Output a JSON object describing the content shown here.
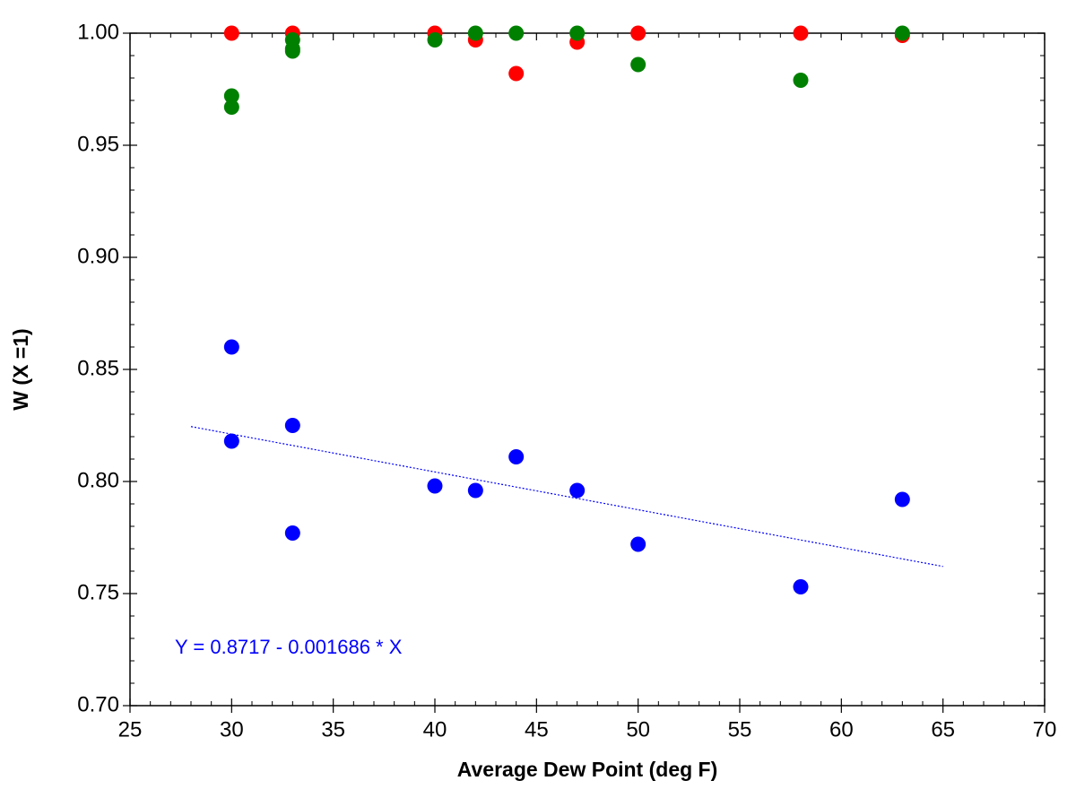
{
  "chart_data": {
    "type": "scatter",
    "xlabel": "Average Dew Point (deg F)",
    "ylabel": "W (X =1)",
    "annotation": "Y = 0.8717 - 0.001686 * X",
    "xlim": [
      25,
      70
    ],
    "xticks": [
      25,
      30,
      35,
      40,
      45,
      50,
      55,
      60,
      65,
      70
    ],
    "ylim": [
      0.7,
      1.0
    ],
    "yticks": [
      {
        "value": 0.7,
        "label": "0.70"
      },
      {
        "value": 0.75,
        "label": "0.75"
      },
      {
        "value": 0.8,
        "label": "0.80"
      },
      {
        "value": 0.85,
        "label": "0.85"
      },
      {
        "value": 0.9,
        "label": "0.90"
      },
      {
        "value": 0.95,
        "label": "0.95"
      },
      {
        "value": 1.0,
        "label": "1.00"
      }
    ],
    "grid": false,
    "series": [
      {
        "color": "#ff0000",
        "x": [
          30,
          33,
          40,
          42,
          44,
          47,
          50,
          58,
          63
        ],
        "values": [
          1.0,
          1.0,
          1.0,
          0.997,
          0.982,
          0.996,
          1.0,
          1.0,
          0.999
        ]
      },
      {
        "color": "#008000",
        "x": [
          30,
          30,
          33,
          33,
          33,
          40,
          42,
          44,
          47,
          50,
          58,
          63
        ],
        "values": [
          0.972,
          0.967,
          0.997,
          0.993,
          0.992,
          0.997,
          1.0,
          1.0,
          1.0,
          0.986,
          0.979,
          1.0
        ]
      },
      {
        "color": "#0000ff",
        "x": [
          30,
          30,
          33,
          33,
          40,
          42,
          44,
          47,
          50,
          58,
          63
        ],
        "values": [
          0.86,
          0.818,
          0.825,
          0.777,
          0.798,
          0.796,
          0.811,
          0.796,
          0.772,
          0.753,
          0.792
        ]
      }
    ],
    "fit_line": {
      "color": "#0000ff",
      "x": [
        28,
        65
      ],
      "values": [
        0.8245,
        0.7621
      ]
    }
  }
}
